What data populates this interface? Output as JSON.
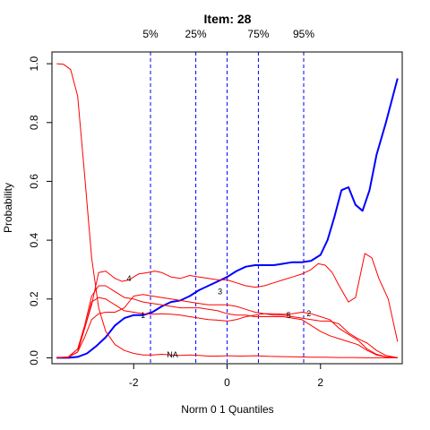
{
  "chart_data": {
    "type": "line",
    "title": "Item:  28",
    "xlabel": "Norm 0 1 Quantiles",
    "ylabel": "Probability",
    "xlim": [
      -3.75,
      3.75
    ],
    "ylim": [
      -0.02,
      1.04
    ],
    "x_ticks": [
      -2,
      0,
      2
    ],
    "x_tick_labels": [
      "-2",
      "0",
      "2"
    ],
    "y_ticks": [
      0.0,
      0.2,
      0.4,
      0.6,
      0.8,
      1.0
    ],
    "y_tick_labels": [
      "0.0",
      "0.2",
      "0.4",
      "0.6",
      "0.8",
      "1.0"
    ],
    "grid": false,
    "quantile_lines": [
      {
        "label": "5%",
        "x": -1.64
      },
      {
        "label": "25%",
        "x": -0.67
      },
      {
        "label": "",
        "x": 0.0
      },
      {
        "label": "75%",
        "x": 0.67
      },
      {
        "label": "95%",
        "x": 1.64
      }
    ],
    "series": [
      {
        "color": "#0000ff",
        "points": [
          [
            -3.65,
            0.0
          ],
          [
            -3.4,
            0.0
          ],
          [
            -3.2,
            0.003
          ],
          [
            -3.0,
            0.015
          ],
          [
            -2.8,
            0.04
          ],
          [
            -2.6,
            0.07
          ],
          [
            -2.4,
            0.11
          ],
          [
            -2.2,
            0.135
          ],
          [
            -2.0,
            0.145
          ],
          [
            -1.8,
            0.145
          ],
          [
            -1.6,
            0.155
          ],
          [
            -1.4,
            0.175
          ],
          [
            -1.2,
            0.19
          ],
          [
            -1.0,
            0.195
          ],
          [
            -0.8,
            0.21
          ],
          [
            -0.6,
            0.23
          ],
          [
            -0.4,
            0.245
          ],
          [
            -0.2,
            0.26
          ],
          [
            0.0,
            0.275
          ],
          [
            0.2,
            0.295
          ],
          [
            0.4,
            0.31
          ],
          [
            0.6,
            0.315
          ],
          [
            0.8,
            0.315
          ],
          [
            1.0,
            0.315
          ],
          [
            1.2,
            0.32
          ],
          [
            1.4,
            0.325
          ],
          [
            1.6,
            0.325
          ],
          [
            1.8,
            0.33
          ],
          [
            2.0,
            0.35
          ],
          [
            2.15,
            0.4
          ],
          [
            2.3,
            0.48
          ],
          [
            2.45,
            0.57
          ],
          [
            2.6,
            0.58
          ],
          [
            2.75,
            0.52
          ],
          [
            2.9,
            0.5
          ],
          [
            3.05,
            0.57
          ],
          [
            3.2,
            0.69
          ],
          [
            3.4,
            0.8
          ],
          [
            3.65,
            0.95
          ]
        ]
      },
      {
        "color": "#ff0000",
        "points": [
          [
            -3.65,
            1.0
          ],
          [
            -3.5,
            0.998
          ],
          [
            -3.35,
            0.98
          ],
          [
            -3.2,
            0.89
          ],
          [
            -3.05,
            0.62
          ],
          [
            -2.9,
            0.34
          ],
          [
            -2.75,
            0.17
          ],
          [
            -2.6,
            0.09
          ],
          [
            -2.4,
            0.045
          ],
          [
            -2.2,
            0.025
          ],
          [
            -2.0,
            0.015
          ],
          [
            -1.8,
            0.01
          ],
          [
            -1.6,
            0.01
          ],
          [
            -1.4,
            0.012
          ],
          [
            -1.2,
            0.01
          ],
          [
            -1.0,
            0.008
          ],
          [
            -0.8,
            0.01
          ],
          [
            -0.6,
            0.008
          ],
          [
            -0.4,
            0.006
          ],
          [
            -0.2,
            0.006
          ],
          [
            0.0,
            0.007
          ],
          [
            0.3,
            0.006
          ],
          [
            0.6,
            0.007
          ],
          [
            0.9,
            0.005
          ],
          [
            1.2,
            0.004
          ],
          [
            1.5,
            0.003
          ],
          [
            1.8,
            0.002
          ],
          [
            2.1,
            0.002
          ],
          [
            2.4,
            0.001
          ],
          [
            2.7,
            0.001
          ],
          [
            3.0,
            0.0
          ],
          [
            3.3,
            0.0
          ],
          [
            3.65,
            0.0
          ]
        ]
      },
      {
        "color": "#ff0000",
        "points": [
          [
            -3.65,
            0.0
          ],
          [
            -3.4,
            0.002
          ],
          [
            -3.2,
            0.03
          ],
          [
            -3.05,
            0.1
          ],
          [
            -2.9,
            0.19
          ],
          [
            -2.75,
            0.205
          ],
          [
            -2.6,
            0.2
          ],
          [
            -2.4,
            0.18
          ],
          [
            -2.2,
            0.16
          ],
          [
            -2.0,
            0.155
          ],
          [
            -1.8,
            0.15
          ],
          [
            -1.6,
            0.148
          ],
          [
            -1.4,
            0.15
          ],
          [
            -1.2,
            0.148
          ],
          [
            -1.0,
            0.145
          ],
          [
            -0.8,
            0.14
          ],
          [
            -0.6,
            0.135
          ],
          [
            -0.4,
            0.13
          ],
          [
            -0.2,
            0.128
          ],
          [
            0.0,
            0.125
          ],
          [
            0.2,
            0.13
          ],
          [
            0.4,
            0.14
          ],
          [
            0.6,
            0.145
          ],
          [
            0.8,
            0.15
          ],
          [
            1.0,
            0.15
          ],
          [
            1.2,
            0.148
          ],
          [
            1.4,
            0.15
          ],
          [
            1.6,
            0.155
          ],
          [
            1.8,
            0.15
          ],
          [
            2.0,
            0.14
          ],
          [
            2.2,
            0.13
          ],
          [
            2.4,
            0.1
          ],
          [
            2.6,
            0.08
          ],
          [
            2.8,
            0.06
          ],
          [
            3.0,
            0.03
          ],
          [
            3.2,
            0.012
          ],
          [
            3.4,
            0.003
          ],
          [
            3.65,
            0.0
          ]
        ]
      },
      {
        "color": "#ff0000",
        "points": [
          [
            -3.65,
            0.0
          ],
          [
            -3.4,
            0.003
          ],
          [
            -3.2,
            0.03
          ],
          [
            -3.05,
            0.11
          ],
          [
            -2.9,
            0.21
          ],
          [
            -2.75,
            0.245
          ],
          [
            -2.6,
            0.245
          ],
          [
            -2.4,
            0.225
          ],
          [
            -2.2,
            0.205
          ],
          [
            -2.0,
            0.2
          ],
          [
            -1.8,
            0.19
          ],
          [
            -1.6,
            0.185
          ],
          [
            -1.4,
            0.18
          ],
          [
            -1.2,
            0.175
          ],
          [
            -1.0,
            0.17
          ],
          [
            -0.8,
            0.17
          ],
          [
            -0.6,
            0.17
          ],
          [
            -0.4,
            0.165
          ],
          [
            -0.2,
            0.16
          ],
          [
            0.0,
            0.15
          ],
          [
            0.2,
            0.145
          ],
          [
            0.4,
            0.145
          ],
          [
            0.6,
            0.14
          ],
          [
            0.8,
            0.14
          ],
          [
            1.0,
            0.14
          ],
          [
            1.2,
            0.14
          ],
          [
            1.4,
            0.135
          ],
          [
            1.6,
            0.13
          ],
          [
            1.8,
            0.11
          ],
          [
            2.0,
            0.09
          ],
          [
            2.2,
            0.075
          ],
          [
            2.4,
            0.065
          ],
          [
            2.6,
            0.055
          ],
          [
            2.8,
            0.045
          ],
          [
            3.0,
            0.025
          ],
          [
            3.2,
            0.01
          ],
          [
            3.4,
            0.003
          ],
          [
            3.65,
            0.0
          ]
        ]
      },
      {
        "color": "#ff0000",
        "points": [
          [
            -3.65,
            0.0
          ],
          [
            -3.4,
            0.002
          ],
          [
            -3.2,
            0.02
          ],
          [
            -3.05,
            0.07
          ],
          [
            -2.9,
            0.13
          ],
          [
            -2.75,
            0.15
          ],
          [
            -2.6,
            0.155
          ],
          [
            -2.4,
            0.155
          ],
          [
            -2.2,
            0.17
          ],
          [
            -2.0,
            0.21
          ],
          [
            -1.8,
            0.215
          ],
          [
            -1.6,
            0.21
          ],
          [
            -1.4,
            0.205
          ],
          [
            -1.2,
            0.2
          ],
          [
            -1.0,
            0.195
          ],
          [
            -0.8,
            0.19
          ],
          [
            -0.6,
            0.185
          ],
          [
            -0.4,
            0.18
          ],
          [
            -0.2,
            0.18
          ],
          [
            0.0,
            0.18
          ],
          [
            0.2,
            0.175
          ],
          [
            0.4,
            0.165
          ],
          [
            0.6,
            0.155
          ],
          [
            0.8,
            0.15
          ],
          [
            1.0,
            0.145
          ],
          [
            1.2,
            0.145
          ],
          [
            1.4,
            0.14
          ],
          [
            1.6,
            0.135
          ],
          [
            1.8,
            0.13
          ],
          [
            2.0,
            0.125
          ],
          [
            2.2,
            0.125
          ],
          [
            2.4,
            0.115
          ],
          [
            2.6,
            0.085
          ],
          [
            2.8,
            0.065
          ],
          [
            3.0,
            0.05
          ],
          [
            3.2,
            0.025
          ],
          [
            3.4,
            0.008
          ],
          [
            3.65,
            0.0
          ]
        ]
      },
      {
        "color": "#ff0000",
        "points": [
          [
            -3.65,
            0.0
          ],
          [
            -3.4,
            0.002
          ],
          [
            -3.2,
            0.02
          ],
          [
            -3.05,
            0.1
          ],
          [
            -2.9,
            0.18
          ],
          [
            -2.75,
            0.29
          ],
          [
            -2.6,
            0.295
          ],
          [
            -2.4,
            0.27
          ],
          [
            -2.25,
            0.26
          ],
          [
            -2.1,
            0.265
          ],
          [
            -1.9,
            0.285
          ],
          [
            -1.7,
            0.29
          ],
          [
            -1.55,
            0.295
          ],
          [
            -1.4,
            0.29
          ],
          [
            -1.2,
            0.275
          ],
          [
            -1.0,
            0.27
          ],
          [
            -0.8,
            0.28
          ],
          [
            -0.6,
            0.275
          ],
          [
            -0.4,
            0.27
          ],
          [
            -0.2,
            0.265
          ],
          [
            0.0,
            0.265
          ],
          [
            0.2,
            0.255
          ],
          [
            0.4,
            0.245
          ],
          [
            0.6,
            0.24
          ],
          [
            0.8,
            0.245
          ],
          [
            1.0,
            0.255
          ],
          [
            1.2,
            0.265
          ],
          [
            1.4,
            0.275
          ],
          [
            1.6,
            0.285
          ],
          [
            1.8,
            0.3
          ],
          [
            1.95,
            0.32
          ],
          [
            2.1,
            0.315
          ],
          [
            2.25,
            0.29
          ],
          [
            2.4,
            0.245
          ],
          [
            2.6,
            0.19
          ],
          [
            2.75,
            0.205
          ],
          [
            2.85,
            0.28
          ],
          [
            2.95,
            0.355
          ],
          [
            3.1,
            0.34
          ],
          [
            3.25,
            0.27
          ],
          [
            3.45,
            0.2
          ],
          [
            3.65,
            0.055
          ]
        ]
      }
    ],
    "curve_labels": [
      {
        "text": "NA",
        "x": -1.17,
        "y": 0.01
      },
      {
        "text": "1",
        "x": -1.8,
        "y": 0.145
      },
      {
        "text": "2",
        "x": 1.75,
        "y": 0.15
      },
      {
        "text": "3",
        "x": -0.15,
        "y": 0.225
      },
      {
        "text": "4",
        "x": -2.1,
        "y": 0.27
      },
      {
        "text": "5",
        "x": 1.32,
        "y": 0.145
      }
    ]
  }
}
